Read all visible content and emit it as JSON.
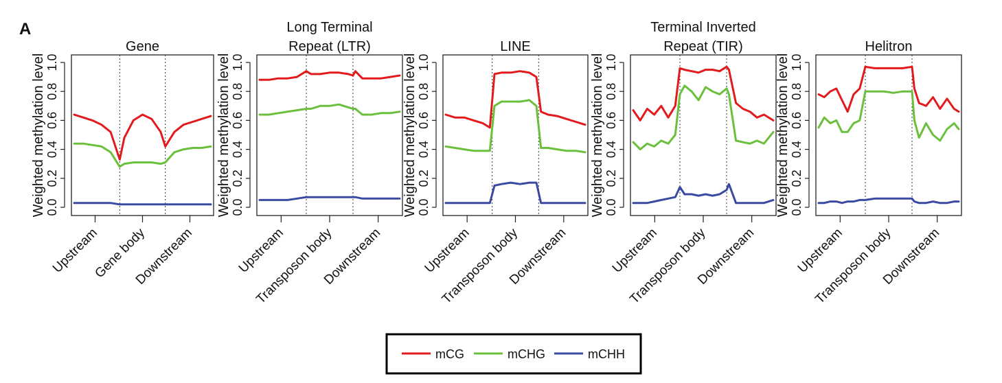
{
  "panel_label": "A",
  "ylabel": "Weighted methylation level",
  "y_ticks": [
    "0.0",
    "0.2",
    "0.4",
    "0.6",
    "0.8",
    "1.0"
  ],
  "colors": {
    "mCG": "#e31a1c",
    "mCHG": "#6abf3b",
    "mCHH": "#3a4aa3"
  },
  "legend": {
    "items": [
      "mCG",
      "mCHG",
      "mCHH"
    ],
    "placement": "bottom-center"
  },
  "chart_data": [
    {
      "type": "line",
      "title_lines": [
        "Gene"
      ],
      "categories": [
        "Upstream",
        "Gene body",
        "Downstream"
      ],
      "ylim": [
        0,
        1.0
      ],
      "x": [
        0,
        0.2,
        0.4,
        0.6,
        0.8,
        1.0,
        1.1,
        1.3,
        1.5,
        1.7,
        1.9,
        2.0,
        2.2,
        2.4,
        2.6,
        2.8,
        3.0
      ],
      "series": [
        {
          "name": "mCG",
          "values": [
            0.64,
            0.62,
            0.6,
            0.57,
            0.52,
            0.33,
            0.48,
            0.6,
            0.64,
            0.61,
            0.52,
            0.42,
            0.52,
            0.57,
            0.59,
            0.61,
            0.63
          ]
        },
        {
          "name": "mCHG",
          "values": [
            0.44,
            0.44,
            0.43,
            0.42,
            0.38,
            0.28,
            0.3,
            0.31,
            0.31,
            0.31,
            0.3,
            0.31,
            0.38,
            0.4,
            0.41,
            0.41,
            0.42
          ]
        },
        {
          "name": "mCHH",
          "values": [
            0.03,
            0.03,
            0.03,
            0.03,
            0.03,
            0.02,
            0.02,
            0.02,
            0.02,
            0.02,
            0.02,
            0.02,
            0.02,
            0.02,
            0.02,
            0.02,
            0.02
          ]
        }
      ]
    },
    {
      "type": "line",
      "title_lines": [
        "Long Terminal",
        "Repeat (LTR)"
      ],
      "categories": [
        "Upstream",
        "Transposon body",
        "Downstream"
      ],
      "ylim": [
        0,
        1.0
      ],
      "x": [
        0,
        0.2,
        0.4,
        0.6,
        0.8,
        1.0,
        1.1,
        1.3,
        1.5,
        1.7,
        1.9,
        2.0,
        2.05,
        2.2,
        2.4,
        2.6,
        2.8,
        3.0
      ],
      "series": [
        {
          "name": "mCG",
          "values": [
            0.88,
            0.88,
            0.89,
            0.89,
            0.9,
            0.94,
            0.92,
            0.92,
            0.93,
            0.93,
            0.92,
            0.91,
            0.94,
            0.89,
            0.89,
            0.89,
            0.9,
            0.91
          ]
        },
        {
          "name": "mCHG",
          "values": [
            0.64,
            0.64,
            0.65,
            0.66,
            0.67,
            0.68,
            0.68,
            0.7,
            0.7,
            0.71,
            0.69,
            0.68,
            0.68,
            0.64,
            0.64,
            0.65,
            0.65,
            0.66
          ]
        },
        {
          "name": "mCHH",
          "values": [
            0.05,
            0.05,
            0.05,
            0.05,
            0.06,
            0.07,
            0.07,
            0.07,
            0.07,
            0.07,
            0.07,
            0.07,
            0.07,
            0.06,
            0.06,
            0.06,
            0.06,
            0.06
          ]
        }
      ]
    },
    {
      "type": "line",
      "title_lines": [
        "LINE"
      ],
      "categories": [
        "Upstream",
        "Transposon body",
        "Downstream"
      ],
      "ylim": [
        0,
        1.0
      ],
      "x": [
        0,
        0.2,
        0.4,
        0.6,
        0.8,
        0.95,
        1.05,
        1.2,
        1.4,
        1.6,
        1.8,
        1.95,
        2.05,
        2.2,
        2.4,
        2.6,
        2.8,
        3.0
      ],
      "series": [
        {
          "name": "mCG",
          "values": [
            0.64,
            0.62,
            0.62,
            0.6,
            0.58,
            0.55,
            0.92,
            0.93,
            0.93,
            0.94,
            0.93,
            0.9,
            0.66,
            0.64,
            0.63,
            0.61,
            0.59,
            0.57
          ]
        },
        {
          "name": "mCHG",
          "values": [
            0.42,
            0.41,
            0.4,
            0.39,
            0.39,
            0.39,
            0.7,
            0.73,
            0.73,
            0.73,
            0.74,
            0.7,
            0.41,
            0.41,
            0.4,
            0.39,
            0.39,
            0.38
          ]
        },
        {
          "name": "mCHH",
          "values": [
            0.03,
            0.03,
            0.03,
            0.03,
            0.03,
            0.03,
            0.15,
            0.16,
            0.17,
            0.16,
            0.17,
            0.17,
            0.03,
            0.03,
            0.03,
            0.03,
            0.03,
            0.03
          ]
        }
      ]
    },
    {
      "type": "line",
      "title_lines": [
        "Terminal Inverted",
        "Repeat (TIR)"
      ],
      "categories": [
        "Upstream",
        "Transposon body",
        "Downstream"
      ],
      "ylim": [
        0,
        1.0
      ],
      "x": [
        0,
        0.15,
        0.3,
        0.45,
        0.6,
        0.75,
        0.9,
        1.0,
        1.1,
        1.25,
        1.4,
        1.55,
        1.7,
        1.85,
        2.0,
        2.05,
        2.2,
        2.35,
        2.5,
        2.65,
        2.8,
        3.0
      ],
      "series": [
        {
          "name": "mCG",
          "values": [
            0.67,
            0.6,
            0.68,
            0.64,
            0.7,
            0.62,
            0.7,
            0.96,
            0.95,
            0.94,
            0.93,
            0.95,
            0.95,
            0.94,
            0.97,
            0.95,
            0.72,
            0.68,
            0.66,
            0.62,
            0.64,
            0.6
          ]
        },
        {
          "name": "mCHG",
          "values": [
            0.45,
            0.4,
            0.44,
            0.42,
            0.46,
            0.44,
            0.5,
            0.78,
            0.84,
            0.8,
            0.74,
            0.83,
            0.8,
            0.78,
            0.82,
            0.78,
            0.46,
            0.45,
            0.44,
            0.46,
            0.44,
            0.52
          ]
        },
        {
          "name": "mCHH",
          "values": [
            0.03,
            0.03,
            0.03,
            0.04,
            0.05,
            0.06,
            0.07,
            0.14,
            0.09,
            0.09,
            0.08,
            0.09,
            0.08,
            0.09,
            0.12,
            0.16,
            0.03,
            0.03,
            0.03,
            0.03,
            0.03,
            0.05
          ]
        }
      ]
    },
    {
      "type": "line",
      "title_lines": [
        "Helitron"
      ],
      "categories": [
        "Upstream",
        "Transposon body",
        "Downstream"
      ],
      "ylim": [
        0,
        1.0
      ],
      "x": [
        0,
        0.12,
        0.25,
        0.38,
        0.5,
        0.62,
        0.75,
        0.88,
        1.0,
        1.2,
        1.4,
        1.6,
        1.8,
        2.0,
        2.05,
        2.15,
        2.3,
        2.45,
        2.6,
        2.75,
        2.9,
        3.0
      ],
      "series": [
        {
          "name": "mCG",
          "values": [
            0.78,
            0.76,
            0.8,
            0.82,
            0.74,
            0.66,
            0.78,
            0.82,
            0.97,
            0.96,
            0.96,
            0.96,
            0.96,
            0.97,
            0.82,
            0.72,
            0.7,
            0.76,
            0.68,
            0.75,
            0.68,
            0.66
          ]
        },
        {
          "name": "mCHG",
          "values": [
            0.55,
            0.62,
            0.58,
            0.6,
            0.52,
            0.52,
            0.58,
            0.6,
            0.8,
            0.8,
            0.8,
            0.79,
            0.8,
            0.8,
            0.6,
            0.48,
            0.58,
            0.5,
            0.46,
            0.54,
            0.58,
            0.54
          ]
        },
        {
          "name": "mCHH",
          "values": [
            0.03,
            0.03,
            0.04,
            0.04,
            0.03,
            0.04,
            0.04,
            0.05,
            0.05,
            0.06,
            0.06,
            0.06,
            0.06,
            0.06,
            0.04,
            0.03,
            0.03,
            0.04,
            0.03,
            0.03,
            0.04,
            0.04
          ]
        }
      ]
    }
  ]
}
